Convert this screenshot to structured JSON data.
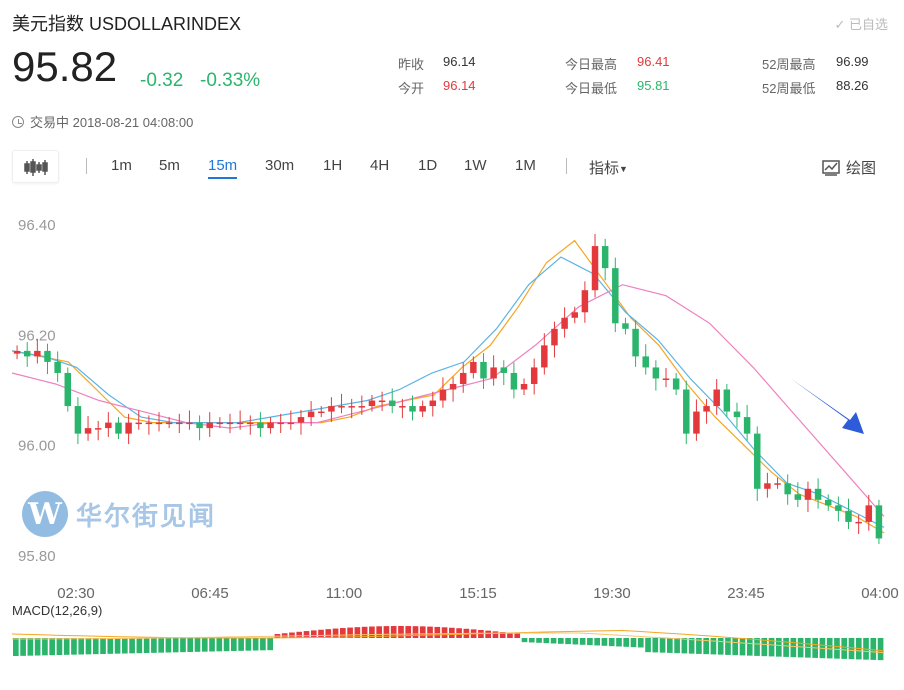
{
  "header": {
    "title": "美元指数 USDOLLARINDEX",
    "favorite_label": "✓ 已自选",
    "price": "95.82",
    "change": "-0.32",
    "change_pct": "-0.33%",
    "status": "交易中 2018-08-21 04:08:00"
  },
  "stats": [
    {
      "label": "昨收",
      "value": "96.14",
      "color": "#333333"
    },
    {
      "label": "今开",
      "value": "96.14",
      "color": "#e4393c"
    },
    {
      "label": "今日最高",
      "value": "96.41",
      "color": "#e4393c"
    },
    {
      "label": "今日最低",
      "value": "95.81",
      "color": "#2bb56c"
    },
    {
      "label": "52周最高",
      "value": "96.99",
      "color": "#333333"
    },
    {
      "label": "52周最低",
      "value": "88.26",
      "color": "#333333"
    }
  ],
  "toolbar": {
    "periods": [
      "1m",
      "5m",
      "15m",
      "30m",
      "1H",
      "4H",
      "1D",
      "1W",
      "1M"
    ],
    "active_period": "15m",
    "indicators_label": "指标",
    "draw_label": "绘图"
  },
  "watermark": {
    "logo_letter": "W",
    "text": "华尔街见闻"
  },
  "colors": {
    "up": "#e4393c",
    "down": "#2bb56c",
    "ma_short": "#f5a623",
    "ma_mid": "#5ab4e5",
    "ma_long": "#ee82c0",
    "arrow": "#2e5bd8",
    "accent": "#1f78d6"
  },
  "chart_data": [
    {
      "type": "candlestick",
      "x_tick_labels": [
        "02:30",
        "06:45",
        "11:00",
        "15:15",
        "19:30",
        "23:45",
        "04:00"
      ],
      "y_tick_labels": [
        "96.40",
        "96.20",
        "96.00",
        "95.80"
      ],
      "ylim": [
        95.77,
        96.44
      ],
      "grid": false,
      "annotation": "arrow pointing down-right",
      "close_values": [
        96.17,
        96.16,
        96.17,
        96.15,
        96.13,
        96.07,
        96.02,
        96.03,
        96.03,
        96.04,
        96.02,
        96.04,
        96.04,
        96.04,
        96.04,
        96.04,
        96.04,
        96.04,
        96.03,
        96.04,
        96.04,
        96.04,
        96.04,
        96.04,
        96.03,
        96.04,
        96.04,
        96.04,
        96.05,
        96.06,
        96.06,
        96.07,
        96.07,
        96.07,
        96.07,
        96.08,
        96.08,
        96.07,
        96.07,
        96.06,
        96.07,
        96.08,
        96.1,
        96.11,
        96.13,
        96.15,
        96.12,
        96.14,
        96.13,
        96.1,
        96.11,
        96.14,
        96.18,
        96.21,
        96.23,
        96.24,
        96.28,
        96.36,
        96.32,
        96.22,
        96.21,
        96.16,
        96.14,
        96.12,
        96.12,
        96.1,
        96.02,
        96.06,
        96.07,
        96.1,
        96.06,
        96.05,
        96.02,
        95.92,
        95.93,
        95.93,
        95.91,
        95.9,
        95.92,
        95.9,
        95.89,
        95.88,
        95.86,
        95.86,
        95.89,
        95.83
      ],
      "ma_series": [
        {
          "values": [
            96.17,
            96.16,
            96.15,
            96.1,
            96.05,
            96.04,
            96.04,
            96.04,
            96.04,
            96.04,
            96.04,
            96.04,
            96.05,
            96.07,
            96.08,
            96.09,
            96.14,
            96.18,
            96.25,
            96.33,
            96.37,
            96.3,
            96.23,
            96.18,
            96.11,
            96.05,
            96.0,
            95.95,
            95.91,
            95.89,
            95.87,
            95.84
          ]
        },
        {
          "values": [
            96.17,
            96.16,
            96.14,
            96.09,
            96.05,
            96.04,
            96.04,
            96.04,
            96.05,
            96.06,
            96.07,
            96.08,
            96.1,
            96.13,
            96.15,
            96.21,
            96.29,
            96.34,
            96.31,
            96.24,
            96.19,
            96.12,
            96.06,
            95.99,
            95.93,
            95.91,
            95.88,
            95.85
          ]
        },
        {
          "values": [
            96.13,
            96.11,
            96.08,
            96.06,
            96.04,
            96.03,
            96.04,
            96.04,
            96.06,
            96.08,
            96.1,
            96.12,
            96.18,
            96.25,
            96.29,
            96.27,
            96.22,
            96.14,
            96.05,
            95.96,
            95.87
          ]
        }
      ]
    },
    {
      "type": "bar",
      "title": "MACD(12,26,9)",
      "description": "MACD histogram: green bars below zero on the left and right, red bars above zero in the middle; orange DEA/DIF lines"
    }
  ]
}
